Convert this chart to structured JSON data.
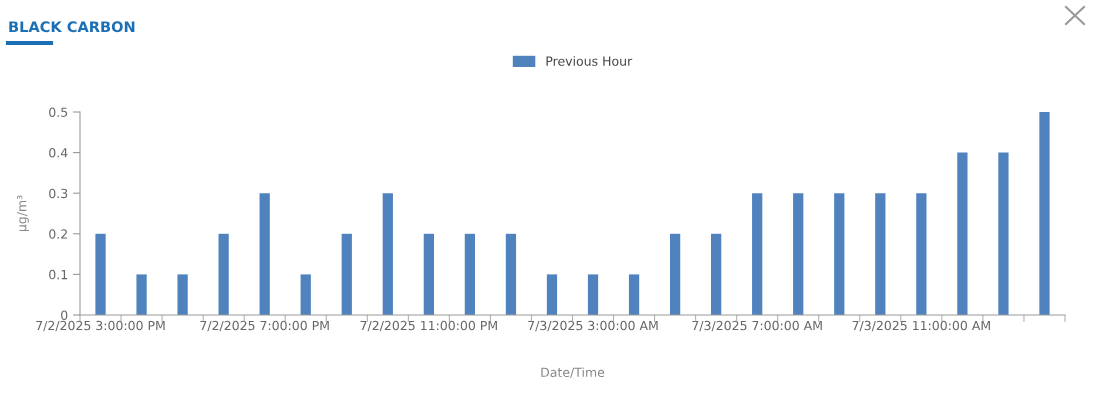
{
  "chart_data": {
    "type": "bar",
    "title": "BLACK CARBON",
    "xlabel": "Date/Time",
    "ylabel": "µg/m³",
    "categories": [
      "7/2/2025 3:00:00 PM",
      null,
      null,
      null,
      "7/2/2025 7:00:00 PM",
      null,
      null,
      null,
      "7/2/2025 11:00:00 PM",
      null,
      null,
      null,
      "7/3/2025 3:00:00 AM",
      null,
      null,
      null,
      "7/3/2025 7:00:00 AM",
      null,
      null,
      null,
      "7/3/2025 11:00:00 AM",
      null,
      null,
      null
    ],
    "series": [
      {
        "name": "Previous Hour",
        "color": "#5083bd",
        "values": [
          0.2,
          0.1,
          0.1,
          0.2,
          0.3,
          0.1,
          0.2,
          0.3,
          0.2,
          0.2,
          0.2,
          0.1,
          0.1,
          0.1,
          0.2,
          0.2,
          0.3,
          0.3,
          0.3,
          0.3,
          0.3,
          0.4,
          0.4,
          0.5
        ]
      }
    ],
    "ylim": [
      0,
      0.5
    ],
    "yticks": [
      0,
      0.1,
      0.2,
      0.3,
      0.4,
      0.5
    ],
    "grid": false,
    "legend": "top"
  }
}
